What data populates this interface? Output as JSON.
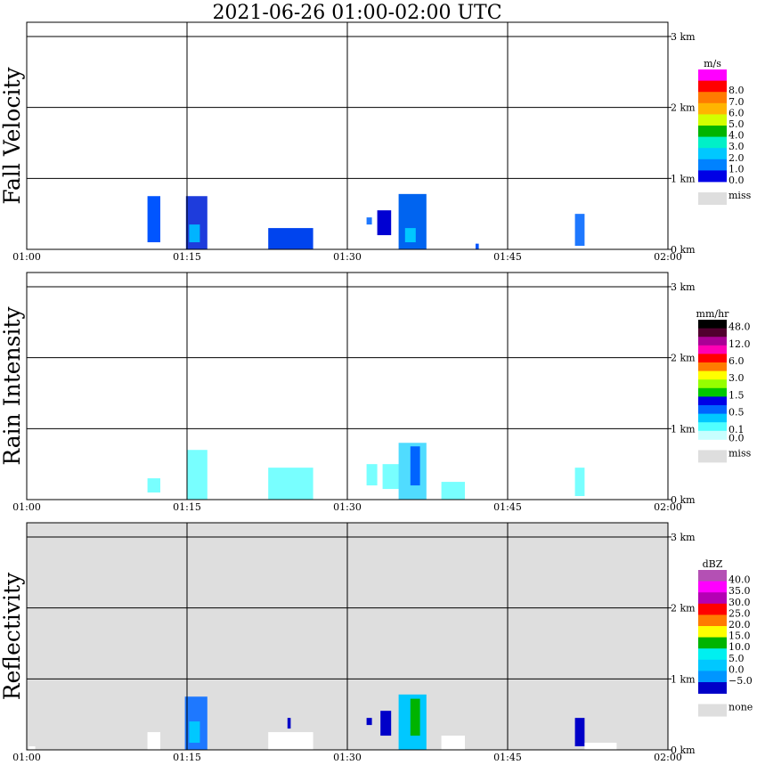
{
  "title": "2021-06-26   01:00-02:00 UTC",
  "time_ticks": [
    "01:00",
    "01:15",
    "01:30",
    "01:45",
    "02:00"
  ],
  "height_ticks": [
    "0 km",
    "1 km",
    "2 km",
    "3 km"
  ],
  "colors": {
    "frame": "#000000",
    "missing_background": "#dedede",
    "no_data_background": "#ffffff"
  },
  "chart_data": [
    {
      "type": "heatmap",
      "title": "Fall Velocity",
      "xlim": [
        "01:00",
        "02:00"
      ],
      "ylim": [
        0,
        3.2
      ],
      "y_unit": "km",
      "grid": true,
      "colorbar": {
        "unit": "m/s",
        "position": "right",
        "bins": [
          {
            "color": "#ff00ff"
          },
          {
            "color": "#ff0000",
            "label": "8.0"
          },
          {
            "color": "#ff7b00",
            "label": "7.0"
          },
          {
            "color": "#ffb400",
            "label": "6.0"
          },
          {
            "color": "#d2ff00",
            "label": "5.0"
          },
          {
            "color": "#00b400",
            "label": "4.0"
          },
          {
            "color": "#00f0c8",
            "label": "3.0"
          },
          {
            "color": "#00c8ff",
            "label": "2.0"
          },
          {
            "color": "#0082ff",
            "label": "1.0"
          },
          {
            "color": "#0000e6",
            "label": "0.0"
          }
        ],
        "miss_label": "miss",
        "miss_color": "#dedede"
      },
      "echoes": [
        {
          "t0": 11.3,
          "t1": 12.5,
          "h0": 0.1,
          "h1": 0.75,
          "color": "#0055ff"
        },
        {
          "t0": 14.9,
          "t1": 16.9,
          "h0": 0.0,
          "h1": 0.75,
          "color": "#1e3cdc"
        },
        {
          "t0": 15.2,
          "t1": 16.2,
          "h0": 0.1,
          "h1": 0.35,
          "color": "#00b4ff"
        },
        {
          "t0": 22.6,
          "t1": 26.8,
          "h0": 0.0,
          "h1": 0.3,
          "color": "#0044ee"
        },
        {
          "t0": 31.8,
          "t1": 32.3,
          "h0": 0.35,
          "h1": 0.45,
          "color": "#1e78ff"
        },
        {
          "t0": 32.8,
          "t1": 34.1,
          "h0": 0.2,
          "h1": 0.55,
          "color": "#0000d2"
        },
        {
          "t0": 34.8,
          "t1": 37.4,
          "h0": 0.0,
          "h1": 0.78,
          "color": "#0064f0"
        },
        {
          "t0": 35.4,
          "t1": 36.4,
          "h0": 0.1,
          "h1": 0.3,
          "color": "#00c8ff"
        },
        {
          "t0": 42.0,
          "t1": 42.3,
          "h0": 0.0,
          "h1": 0.08,
          "color": "#0055ff"
        },
        {
          "t0": 51.3,
          "t1": 52.2,
          "h0": 0.05,
          "h1": 0.5,
          "color": "#1e78ff"
        }
      ]
    },
    {
      "type": "heatmap",
      "title": "Rain Intensity",
      "xlim": [
        "01:00",
        "02:00"
      ],
      "ylim": [
        0,
        3.2
      ],
      "y_unit": "km",
      "grid": true,
      "colorbar": {
        "unit": "mm/hr",
        "position": "right",
        "bins": [
          {
            "color": "#000000",
            "label": "48.0"
          },
          {
            "color": "#50002d"
          },
          {
            "color": "#aa0096",
            "label": "12.0"
          },
          {
            "color": "#ff00b4"
          },
          {
            "color": "#ff0000",
            "label": "6.0"
          },
          {
            "color": "#ff7b00"
          },
          {
            "color": "#ffff00",
            "label": "3.0"
          },
          {
            "color": "#96ff00"
          },
          {
            "color": "#00c800",
            "label": "1.5"
          },
          {
            "color": "#0000e6"
          },
          {
            "color": "#0064ff",
            "label": "0.5"
          },
          {
            "color": "#00c8ff"
          },
          {
            "color": "#50ffff",
            "label": "0.1"
          },
          {
            "color": "#c8ffff",
            "label": "0.0"
          }
        ],
        "miss_label": "miss",
        "miss_color": "#dedede"
      },
      "echoes": [
        {
          "t0": 11.3,
          "t1": 12.5,
          "h0": 0.1,
          "h1": 0.3,
          "color": "#78ffff"
        },
        {
          "t0": 15.0,
          "t1": 16.9,
          "h0": 0.0,
          "h1": 0.7,
          "color": "#78ffff"
        },
        {
          "t0": 22.6,
          "t1": 26.8,
          "h0": 0.0,
          "h1": 0.45,
          "color": "#78ffff"
        },
        {
          "t0": 31.8,
          "t1": 32.8,
          "h0": 0.2,
          "h1": 0.5,
          "color": "#78ffff"
        },
        {
          "t0": 33.3,
          "t1": 35.0,
          "h0": 0.15,
          "h1": 0.5,
          "color": "#78ffff"
        },
        {
          "t0": 34.8,
          "t1": 37.4,
          "h0": 0.0,
          "h1": 0.8,
          "color": "#50dcff"
        },
        {
          "t0": 35.9,
          "t1": 36.8,
          "h0": 0.2,
          "h1": 0.75,
          "color": "#0064ff"
        },
        {
          "t0": 38.8,
          "t1": 41.0,
          "h0": 0.0,
          "h1": 0.25,
          "color": "#78ffff"
        },
        {
          "t0": 51.3,
          "t1": 52.2,
          "h0": 0.05,
          "h1": 0.45,
          "color": "#78ffff"
        }
      ]
    },
    {
      "type": "heatmap",
      "title": "Reflectivity",
      "xlim": [
        "01:00",
        "02:00"
      ],
      "ylim": [
        0,
        3.2
      ],
      "y_unit": "km",
      "grid": true,
      "background": "#dedede",
      "colorbar": {
        "unit": "dBZ",
        "position": "right",
        "bins": [
          {
            "color": "#b450b4",
            "label": "40.0"
          },
          {
            "color": "#ff00ff",
            "label": "35.0"
          },
          {
            "color": "#b400b4",
            "label": "30.0"
          },
          {
            "color": "#ff0000",
            "label": "25.0"
          },
          {
            "color": "#ff7b00",
            "label": "20.0"
          },
          {
            "color": "#ffff00",
            "label": "15.0"
          },
          {
            "color": "#00b400",
            "label": "10.0"
          },
          {
            "color": "#00f0f0",
            "label": "5.0"
          },
          {
            "color": "#00c8ff",
            "label": "0.0"
          },
          {
            "color": "#0096ff",
            "label": "−5.0"
          },
          {
            "color": "#0000c8"
          }
        ],
        "miss_label": "none",
        "miss_color": "#dedede"
      },
      "echoes": [
        {
          "t0": 0.2,
          "t1": 0.8,
          "h0": 0.0,
          "h1": 0.05,
          "color": "#ffffff"
        },
        {
          "t0": 11.3,
          "t1": 12.5,
          "h0": 0.0,
          "h1": 0.25,
          "color": "#ffffff"
        },
        {
          "t0": 14.8,
          "t1": 16.9,
          "h0": 0.0,
          "h1": 0.75,
          "color": "#1e78ff"
        },
        {
          "t0": 15.2,
          "t1": 16.2,
          "h0": 0.1,
          "h1": 0.4,
          "color": "#00c8ff"
        },
        {
          "t0": 22.6,
          "t1": 26.8,
          "h0": 0.0,
          "h1": 0.25,
          "color": "#ffffff"
        },
        {
          "t0": 24.4,
          "t1": 24.7,
          "h0": 0.3,
          "h1": 0.45,
          "color": "#0000c8"
        },
        {
          "t0": 31.8,
          "t1": 32.3,
          "h0": 0.35,
          "h1": 0.45,
          "color": "#0000c8"
        },
        {
          "t0": 33.1,
          "t1": 34.1,
          "h0": 0.2,
          "h1": 0.55,
          "color": "#0000c8"
        },
        {
          "t0": 34.8,
          "t1": 37.4,
          "h0": 0.0,
          "h1": 0.78,
          "color": "#00c8ff"
        },
        {
          "t0": 35.9,
          "t1": 36.8,
          "h0": 0.2,
          "h1": 0.72,
          "color": "#00b400"
        },
        {
          "t0": 38.8,
          "t1": 41.0,
          "h0": 0.0,
          "h1": 0.2,
          "color": "#ffffff"
        },
        {
          "t0": 51.3,
          "t1": 52.2,
          "h0": 0.05,
          "h1": 0.45,
          "color": "#0000c8"
        },
        {
          "t0": 52.2,
          "t1": 55.2,
          "h0": 0.0,
          "h1": 0.1,
          "color": "#ffffff"
        }
      ]
    }
  ]
}
